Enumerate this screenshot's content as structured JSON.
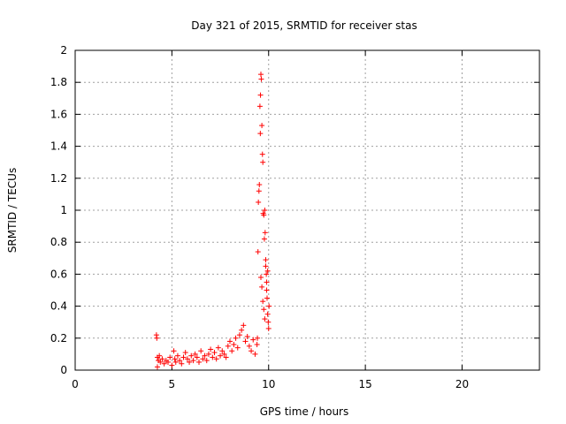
{
  "chart_data": {
    "type": "scatter",
    "title": "Day 321 of 2015, SRMTID for receiver stas",
    "xlabel": "GPS time / hours",
    "ylabel": "SRMTID / TECUs",
    "xlim": [
      0,
      24
    ],
    "ylim": [
      0,
      2
    ],
    "xticks": [
      0,
      5,
      10,
      15,
      20
    ],
    "yticks": [
      0,
      0.2,
      0.4,
      0.6,
      0.8,
      1,
      1.2,
      1.4,
      1.6,
      1.8,
      2
    ],
    "x_tick_labels": [
      "0",
      "5",
      "10",
      "15",
      "20"
    ],
    "y_tick_labels": [
      "0",
      "0.2",
      "0.4",
      "0.6",
      "0.8",
      "1",
      "1.2",
      "1.4",
      "1.6",
      "1.8",
      "2"
    ],
    "grid": true,
    "marker": "+",
    "marker_color": "#ff0000",
    "series": [
      {
        "name": "stas",
        "x": [
          4.2,
          4.22,
          4.25,
          4.25,
          4.3,
          4.35,
          4.4,
          4.5,
          4.6,
          4.7,
          4.8,
          4.9,
          5.0,
          5.1,
          5.15,
          5.2,
          5.3,
          5.4,
          5.5,
          5.6,
          5.7,
          5.8,
          5.9,
          6.0,
          6.1,
          6.2,
          6.3,
          6.4,
          6.5,
          6.6,
          6.7,
          6.8,
          6.9,
          7.0,
          7.1,
          7.2,
          7.3,
          7.4,
          7.5,
          7.6,
          7.7,
          7.8,
          7.9,
          8.0,
          8.1,
          8.2,
          8.3,
          8.4,
          8.5,
          8.6,
          8.7,
          8.8,
          8.9,
          9.0,
          9.1,
          9.2,
          9.3,
          9.4,
          9.42,
          9.45,
          9.47,
          9.5,
          9.52,
          9.55,
          9.57,
          9.58,
          9.6,
          9.62,
          9.65,
          9.68,
          9.7,
          9.72,
          9.75,
          9.78,
          9.8,
          9.82,
          9.85,
          9.88,
          9.9,
          9.92,
          9.95,
          9.98,
          10.0,
          10.02,
          9.6,
          9.65,
          9.7,
          9.75,
          9.8,
          9.85,
          9.9,
          9.95
        ],
        "y": [
          0.22,
          0.2,
          0.02,
          0.08,
          0.06,
          0.09,
          0.05,
          0.07,
          0.04,
          0.06,
          0.05,
          0.08,
          0.03,
          0.12,
          0.07,
          0.05,
          0.09,
          0.06,
          0.04,
          0.08,
          0.11,
          0.07,
          0.05,
          0.09,
          0.06,
          0.1,
          0.08,
          0.05,
          0.12,
          0.07,
          0.09,
          0.06,
          0.1,
          0.13,
          0.08,
          0.11,
          0.07,
          0.14,
          0.09,
          0.12,
          0.1,
          0.08,
          0.15,
          0.18,
          0.12,
          0.16,
          0.2,
          0.14,
          0.22,
          0.25,
          0.28,
          0.18,
          0.21,
          0.15,
          0.12,
          0.19,
          0.1,
          0.16,
          0.2,
          0.74,
          1.05,
          1.12,
          1.16,
          1.65,
          1.48,
          1.72,
          1.85,
          1.82,
          1.53,
          1.35,
          1.3,
          0.98,
          0.97,
          0.82,
          1.0,
          0.86,
          0.69,
          0.6,
          0.5,
          0.45,
          0.35,
          0.3,
          0.26,
          0.4,
          0.58,
          0.52,
          0.43,
          0.38,
          0.32,
          0.65,
          0.55,
          0.62
        ]
      }
    ]
  }
}
